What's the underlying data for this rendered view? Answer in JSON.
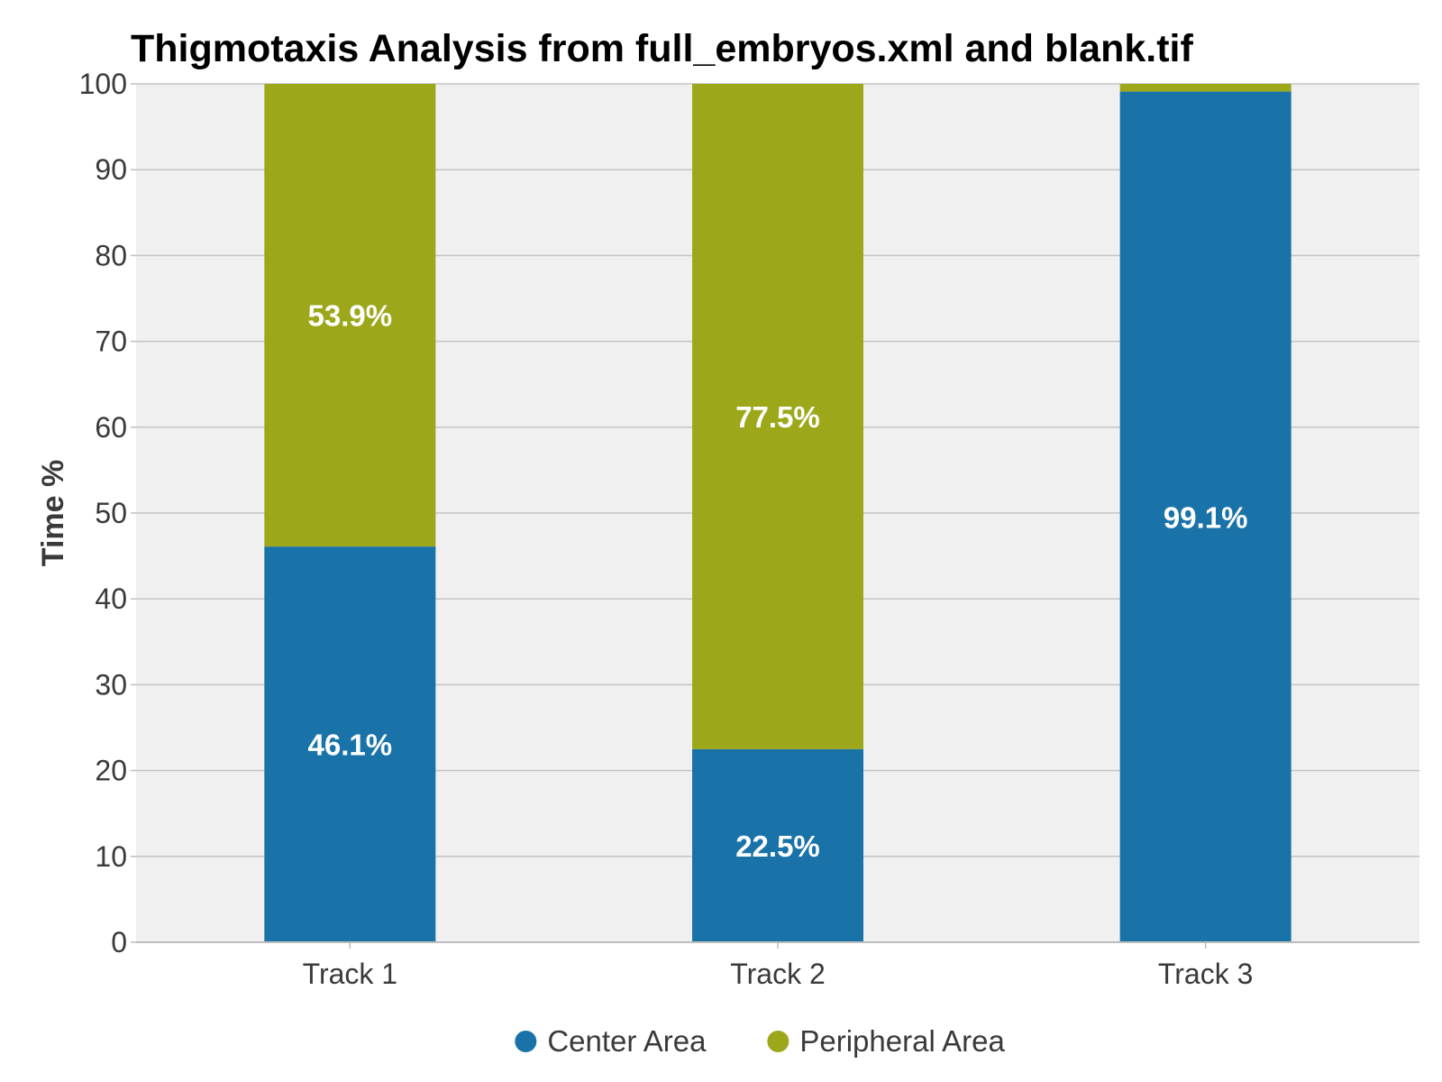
{
  "chart_data": {
    "type": "bar",
    "stacked": true,
    "title": "Thigmotaxis Analysis from full_embryos.xml and blank.tif",
    "xlabel": "",
    "ylabel": "Time %",
    "ylim": [
      0,
      100
    ],
    "yticks": [
      0,
      10,
      20,
      30,
      40,
      50,
      60,
      70,
      80,
      90,
      100
    ],
    "grid": true,
    "categories": [
      "Track 1",
      "Track 2",
      "Track 3"
    ],
    "series": [
      {
        "name": "Center Area",
        "color": "#1a73a8",
        "values": [
          46.1,
          22.5,
          99.1
        ],
        "labels": [
          "46.1%",
          "22.5%",
          "99.1%"
        ]
      },
      {
        "name": "Peripheral Area",
        "color": "#9ca81a",
        "values": [
          53.9,
          77.5,
          0.9
        ],
        "labels": [
          "53.9%",
          "77.5%",
          ""
        ]
      }
    ],
    "legend_position": "bottom",
    "background_color": "#f0f0f0",
    "grid_color": "#c4c4c4"
  }
}
